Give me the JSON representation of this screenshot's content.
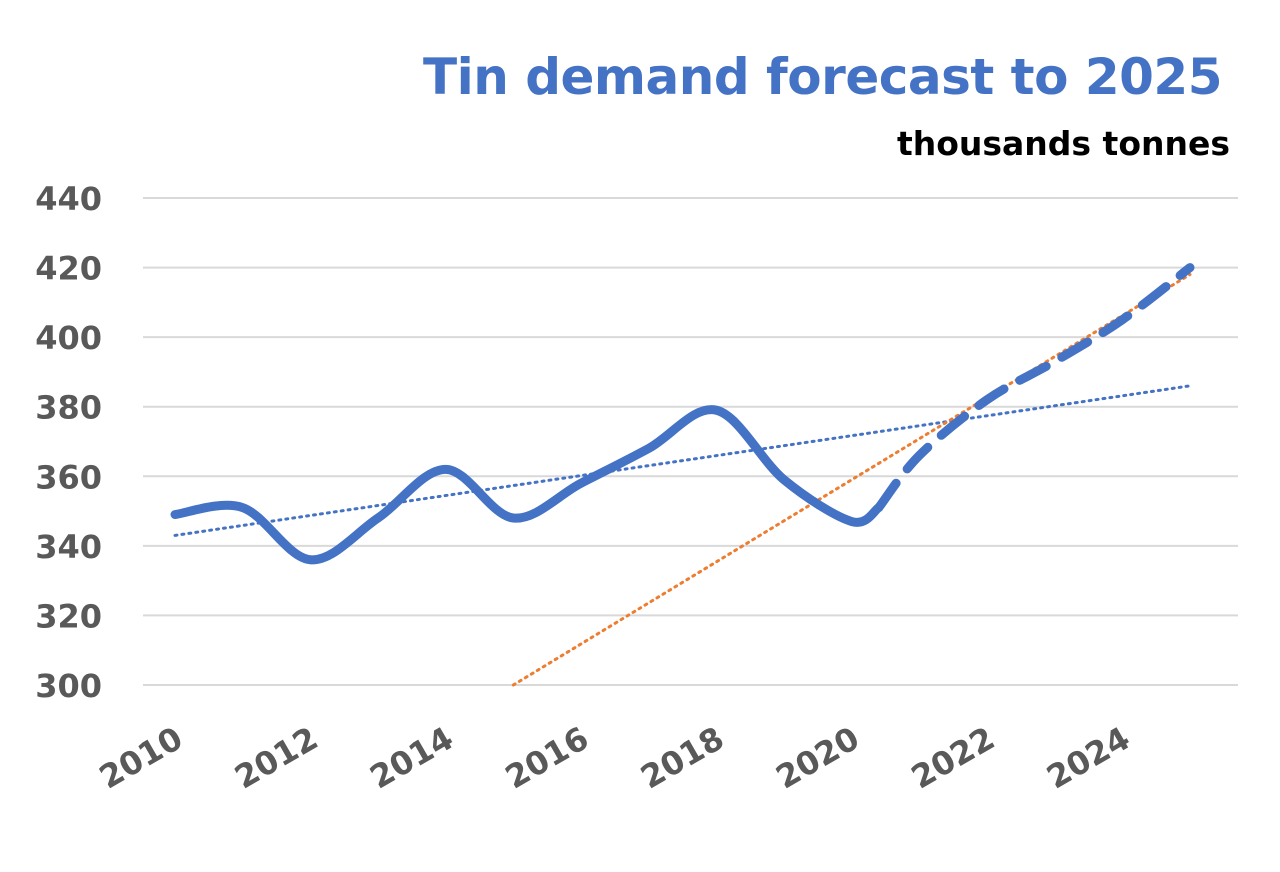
{
  "chart_data": {
    "type": "line",
    "title": "Tin demand forecast to 2025",
    "subtitle": "thousands tonnes",
    "xlabel": "",
    "ylabel": "",
    "ylim": [
      300,
      440
    ],
    "y_ticks": [
      "300",
      "320",
      "340",
      "360",
      "380",
      "400",
      "420",
      "440"
    ],
    "xlim": [
      2010,
      2025
    ],
    "x_ticks": [
      "2010",
      "2012",
      "2014",
      "2016",
      "2018",
      "2020",
      "2022",
      "2024"
    ],
    "grid": true,
    "legend": "none",
    "series": [
      {
        "style": "solid",
        "color": "#4472c4",
        "x": [
          2010,
          2011,
          2012,
          2013,
          2014,
          2015,
          2016,
          2017,
          2018,
          2019,
          2020,
          2020.4
        ],
        "values": [
          349,
          351,
          336,
          348,
          362,
          348,
          358,
          368,
          379,
          359,
          347,
          351
        ]
      },
      {
        "style": "dashed",
        "color": "#4472c4",
        "x": [
          2020.4,
          2021,
          2022,
          2023,
          2024,
          2025
        ],
        "values": [
          351,
          366,
          382,
          393,
          405,
          420
        ]
      },
      {
        "style": "dotted-trendline",
        "color": "#4472c4",
        "x": [
          2010,
          2025
        ],
        "values": [
          343,
          386
        ]
      },
      {
        "style": "dotted-trendline",
        "color": "#ed7d31",
        "x": [
          2015,
          2025
        ],
        "values": [
          300,
          418
        ]
      }
    ]
  }
}
